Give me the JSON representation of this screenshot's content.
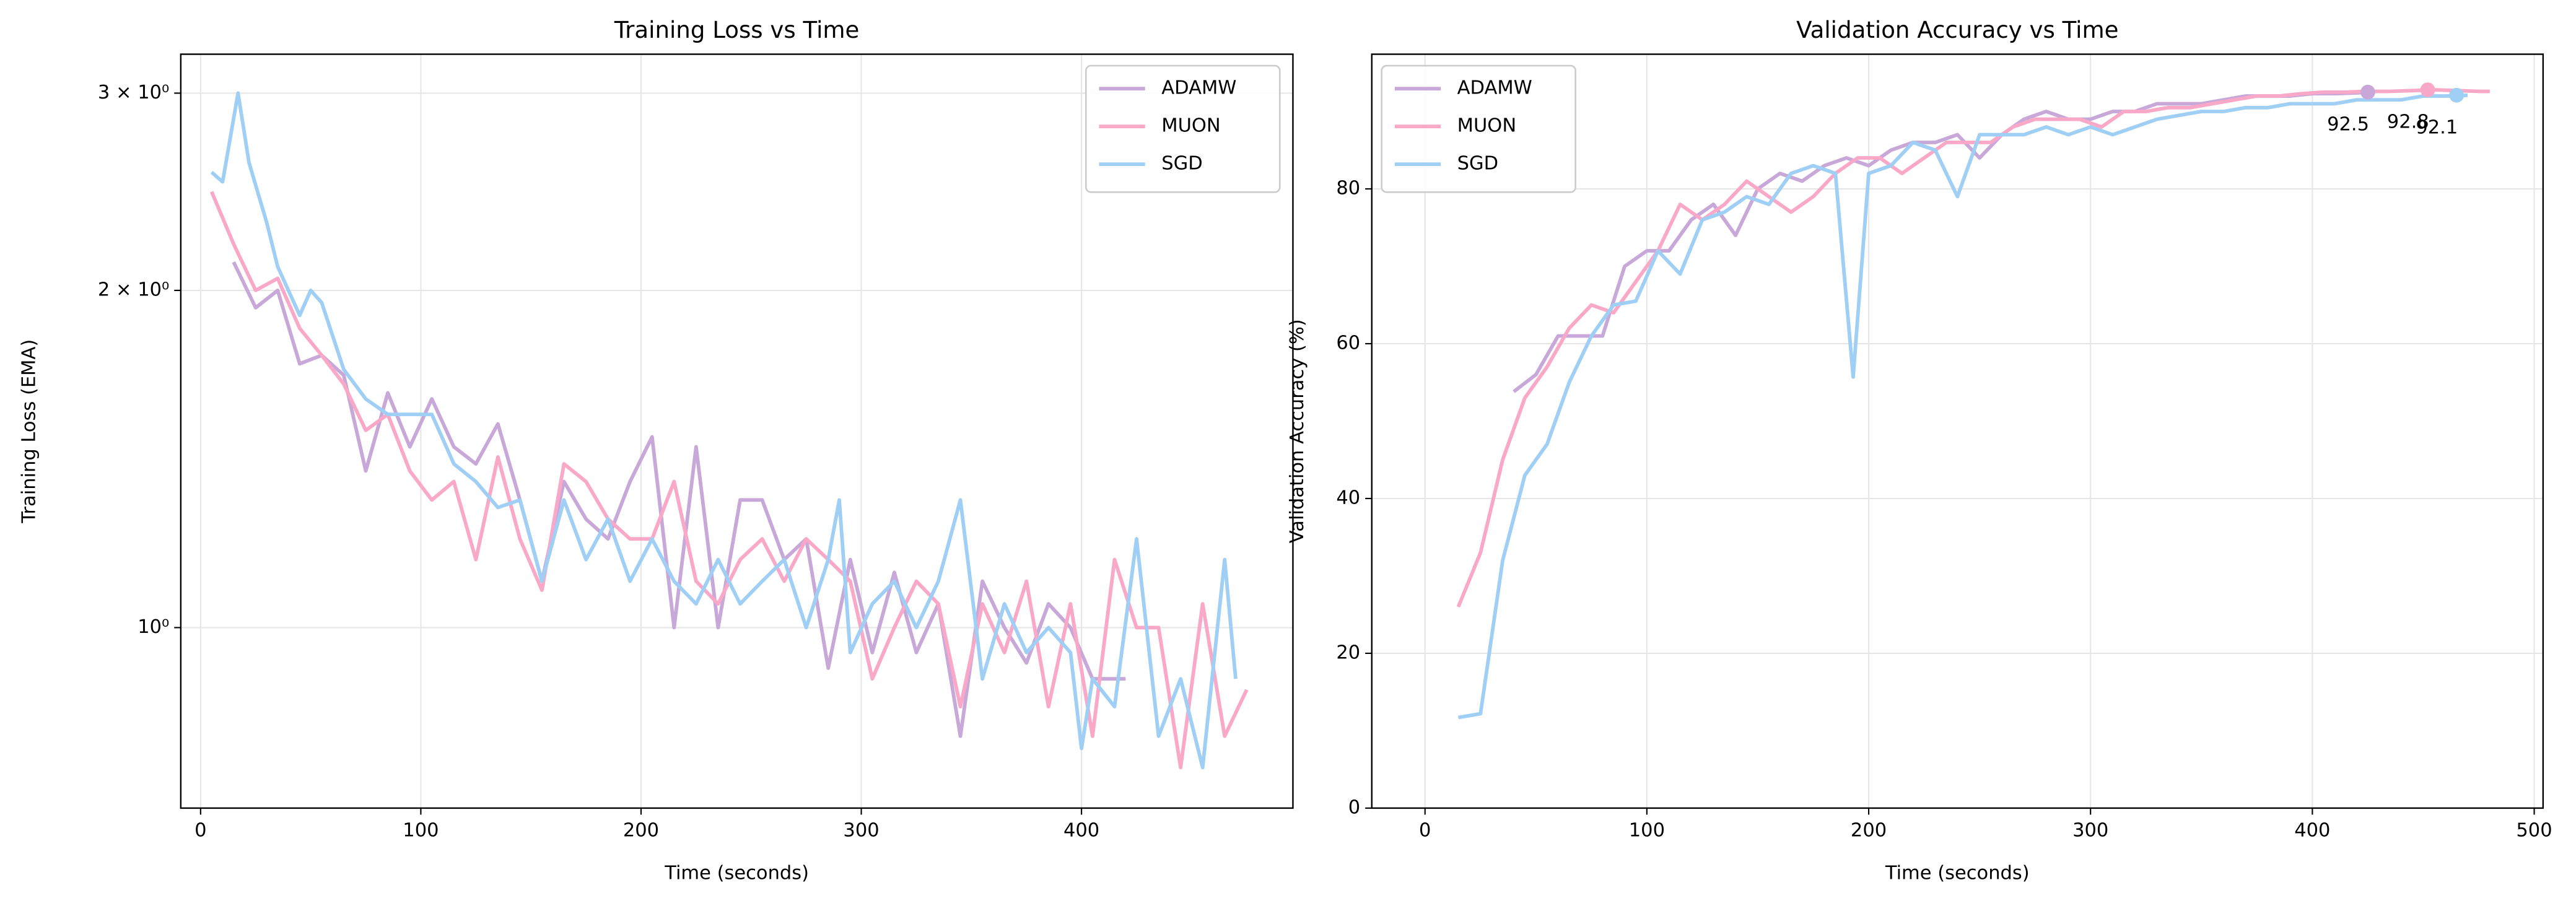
{
  "chart_data": [
    {
      "type": "line",
      "title": "Training Loss vs Time",
      "xlabel": "Time (seconds)",
      "ylabel": "Training Loss (EMA)",
      "xlim": [
        -9,
        496
      ],
      "xticks": [
        0,
        100,
        200,
        300,
        400
      ],
      "ylim": [
        0.69,
        3.25
      ],
      "yscale": "log",
      "yticks": [
        {
          "value": 1,
          "label": "10⁰"
        },
        {
          "value": 2,
          "label": "2 × 10⁰"
        },
        {
          "value": 3,
          "label": "3 × 10⁰"
        }
      ],
      "grid": true,
      "legend": "upper right",
      "series": [
        {
          "name": "ADAMW",
          "color": "#c8a8d8",
          "x": [
            15,
            25,
            35,
            45,
            55,
            65,
            75,
            85,
            95,
            105,
            115,
            125,
            135,
            145,
            155,
            165,
            175,
            185,
            195,
            205,
            215,
            225,
            235,
            245,
            255,
            265,
            275,
            285,
            295,
            305,
            315,
            325,
            335,
            345,
            355,
            365,
            375,
            385,
            395,
            405,
            415,
            420
          ],
          "values": [
            2.12,
            1.93,
            2.0,
            1.72,
            1.75,
            1.68,
            1.38,
            1.62,
            1.45,
            1.6,
            1.45,
            1.4,
            1.52,
            1.3,
            1.1,
            1.35,
            1.25,
            1.2,
            1.35,
            1.48,
            1.0,
            1.45,
            1.0,
            1.3,
            1.3,
            1.15,
            1.2,
            0.92,
            1.15,
            0.95,
            1.12,
            0.95,
            1.05,
            0.8,
            1.1,
            1.0,
            0.93,
            1.05,
            1.0,
            0.9,
            0.9,
            0.9
          ]
        },
        {
          "name": "MUON",
          "color": "#f9a8c8",
          "x": [
            5,
            15,
            25,
            35,
            45,
            55,
            65,
            75,
            85,
            95,
            105,
            115,
            125,
            135,
            145,
            155,
            165,
            175,
            185,
            195,
            205,
            215,
            225,
            235,
            245,
            255,
            265,
            275,
            285,
            295,
            305,
            315,
            325,
            335,
            345,
            355,
            365,
            375,
            385,
            395,
            405,
            415,
            425,
            435,
            445,
            455,
            465,
            475
          ],
          "values": [
            2.45,
            2.2,
            2.0,
            2.05,
            1.85,
            1.75,
            1.65,
            1.5,
            1.55,
            1.38,
            1.3,
            1.35,
            1.15,
            1.42,
            1.2,
            1.08,
            1.4,
            1.35,
            1.25,
            1.2,
            1.2,
            1.35,
            1.1,
            1.05,
            1.15,
            1.2,
            1.1,
            1.2,
            1.15,
            1.1,
            0.9,
            1.0,
            1.1,
            1.05,
            0.85,
            1.05,
            0.95,
            1.1,
            0.85,
            1.05,
            0.8,
            1.15,
            1.0,
            1.0,
            0.75,
            1.05,
            0.8,
            0.88
          ]
        },
        {
          "name": "SGD",
          "color": "#a0cff5",
          "x": [
            5,
            10,
            17,
            22,
            30,
            35,
            45,
            50,
            55,
            65,
            75,
            85,
            95,
            105,
            115,
            125,
            135,
            145,
            155,
            165,
            175,
            185,
            195,
            205,
            215,
            225,
            235,
            245,
            255,
            265,
            275,
            285,
            290,
            295,
            305,
            315,
            325,
            335,
            345,
            355,
            365,
            375,
            385,
            395,
            400,
            405,
            415,
            425,
            435,
            445,
            455,
            465,
            470
          ],
          "values": [
            2.55,
            2.5,
            3.0,
            2.6,
            2.3,
            2.1,
            1.9,
            2.0,
            1.95,
            1.7,
            1.6,
            1.55,
            1.55,
            1.55,
            1.4,
            1.35,
            1.28,
            1.3,
            1.1,
            1.3,
            1.15,
            1.25,
            1.1,
            1.2,
            1.1,
            1.05,
            1.15,
            1.05,
            1.1,
            1.15,
            1.0,
            1.15,
            1.3,
            0.95,
            1.05,
            1.1,
            1.0,
            1.1,
            1.3,
            0.9,
            1.05,
            0.95,
            1.0,
            0.95,
            0.78,
            0.9,
            0.85,
            1.2,
            0.8,
            0.9,
            0.75,
            1.15,
            0.9
          ]
        }
      ]
    },
    {
      "type": "line",
      "title": "Validation Accuracy vs Time",
      "xlabel": "Time (seconds)",
      "ylabel": "Validation Accuracy (%)",
      "xlim": [
        -24,
        504
      ],
      "xticks": [
        0,
        100,
        200,
        300,
        400,
        500
      ],
      "ylim": [
        0,
        97.4
      ],
      "yticks": [
        0,
        20,
        40,
        60,
        80
      ],
      "grid": true,
      "legend": "upper left",
      "series": [
        {
          "name": "ADAMW",
          "color": "#c8a8d8",
          "x": [
            40,
            50,
            60,
            70,
            80,
            90,
            100,
            110,
            120,
            130,
            140,
            150,
            160,
            170,
            180,
            190,
            200,
            210,
            220,
            230,
            240,
            250,
            260,
            270,
            280,
            290,
            300,
            310,
            320,
            330,
            340,
            350,
            360,
            370,
            380,
            390,
            400,
            410,
            420,
            425
          ],
          "values": [
            53.8,
            56,
            61,
            61,
            61,
            70,
            72,
            72,
            76,
            78,
            74,
            80,
            82,
            81,
            83,
            84,
            83,
            85,
            86,
            86,
            87,
            84,
            87,
            89,
            90,
            89,
            89,
            90,
            90,
            91,
            91,
            91,
            91.5,
            92,
            92,
            92,
            92.3,
            92.3,
            92.4,
            92.5
          ]
        },
        {
          "name": "MUON",
          "color": "#f9a8c8",
          "x": [
            15,
            25,
            35,
            45,
            55,
            65,
            75,
            85,
            95,
            105,
            115,
            125,
            135,
            145,
            155,
            165,
            175,
            185,
            195,
            205,
            215,
            225,
            235,
            245,
            255,
            265,
            275,
            285,
            295,
            305,
            315,
            325,
            335,
            345,
            355,
            365,
            375,
            385,
            395,
            405,
            415,
            425,
            435,
            445,
            455,
            465,
            475,
            480
          ],
          "values": [
            26,
            33,
            45,
            53,
            57,
            62,
            65,
            64,
            68,
            72,
            78,
            76,
            78,
            81,
            79,
            77,
            79,
            82,
            84,
            84,
            82,
            84,
            86,
            86,
            86,
            88,
            89,
            89,
            89,
            88,
            90,
            90,
            90.5,
            90.5,
            91,
            91.5,
            92,
            92,
            92.3,
            92.5,
            92.5,
            92.6,
            92.6,
            92.7,
            92.8,
            92.7,
            92.6,
            92.6
          ]
        },
        {
          "name": "SGD",
          "color": "#a0cff5",
          "x": [
            15,
            25,
            35,
            45,
            55,
            65,
            75,
            85,
            95,
            105,
            115,
            125,
            135,
            145,
            155,
            165,
            175,
            185,
            193,
            200,
            210,
            220,
            230,
            240,
            250,
            260,
            270,
            280,
            290,
            300,
            310,
            320,
            330,
            340,
            350,
            360,
            370,
            380,
            390,
            400,
            410,
            420,
            430,
            440,
            450,
            460,
            470
          ],
          "values": [
            11.7,
            12.2,
            32,
            43,
            47,
            55,
            61,
            65,
            65.5,
            72,
            69,
            76,
            77,
            79,
            78,
            82,
            83,
            82,
            55.7,
            82,
            83,
            86,
            85,
            79,
            87,
            87,
            87,
            88,
            87,
            88,
            87,
            88,
            89,
            89.5,
            90,
            90,
            90.5,
            90.5,
            91,
            91,
            91,
            91.5,
            91.5,
            91.5,
            92,
            92,
            92.1
          ]
        }
      ],
      "annotations": [
        {
          "x": 425,
          "y": 92.5,
          "label": "92.5",
          "color": "#c8a8d8"
        },
        {
          "x": 452,
          "y": 92.8,
          "label": "92.8",
          "color": "#f9a8c8"
        },
        {
          "x": 465,
          "y": 92.1,
          "label": "92.1",
          "color": "#a0cff5"
        }
      ]
    }
  ]
}
